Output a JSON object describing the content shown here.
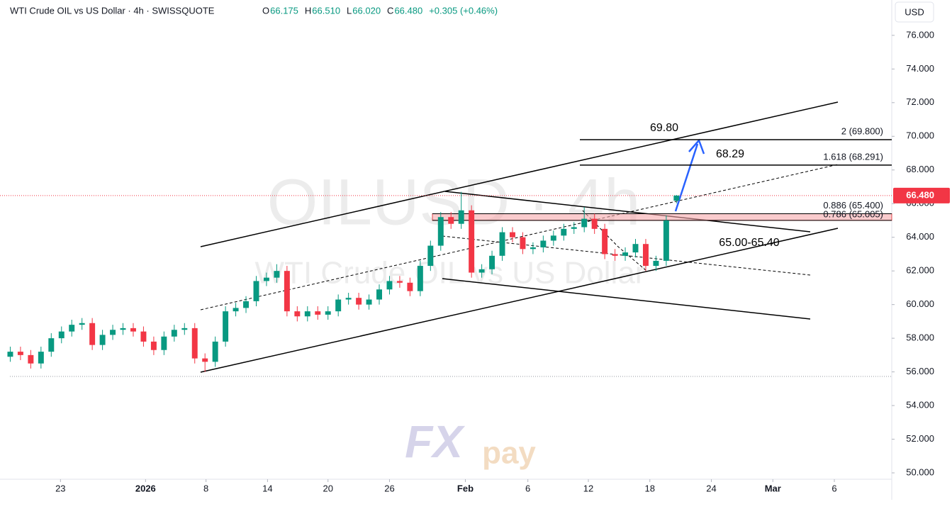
{
  "header": {
    "title": "WTI Crude OIL vs US Dollar · 4h · SWISSQUOTE",
    "ohlc": [
      {
        "label": "O",
        "value": "66.175"
      },
      {
        "label": "H",
        "value": "66.510"
      },
      {
        "label": "L",
        "value": "66.020"
      },
      {
        "label": "C",
        "value": "66.480"
      }
    ],
    "change": "+0.305 (+0.46%)",
    "currency": "USD"
  },
  "watermark": {
    "symbol": "OILUSD · 4h",
    "description": "WTI Crude OIL vs US Dollar",
    "brand_parts": [
      "FX",
      "pay"
    ]
  },
  "chart_data": {
    "type": "candlestick",
    "x": [
      0,
      1,
      2,
      3,
      4,
      5,
      6,
      7,
      8,
      9,
      10,
      11,
      12,
      13,
      14,
      15,
      16,
      17,
      18,
      19,
      20,
      21,
      22,
      23,
      24,
      25,
      26,
      27,
      28,
      29,
      30,
      31,
      32,
      33,
      34,
      35,
      36,
      37,
      38,
      39,
      40,
      41,
      42,
      43,
      44,
      45,
      46,
      47,
      48,
      49,
      50,
      51,
      52,
      53,
      54,
      55,
      56,
      57,
      58,
      59,
      60,
      61,
      62,
      63,
      64,
      65
    ],
    "open": [
      56.9,
      57.2,
      57.0,
      56.5,
      57.2,
      58.0,
      58.4,
      58.8,
      58.9,
      57.6,
      58.2,
      58.5,
      58.6,
      58.4,
      57.8,
      57.3,
      58.1,
      58.5,
      58.6,
      56.8,
      56.6,
      57.8,
      59.6,
      59.8,
      60.2,
      61.4,
      61.6,
      62.0,
      59.6,
      59.3,
      59.6,
      59.4,
      59.6,
      60.3,
      60.4,
      60.0,
      60.3,
      60.9,
      61.4,
      61.3,
      60.8,
      62.3,
      63.5,
      65.2,
      64.8,
      65.6,
      61.9,
      62.1,
      62.9,
      64.3,
      64.0,
      63.3,
      63.4,
      63.8,
      64.1,
      64.5,
      64.6,
      65.1,
      64.5,
      63.0,
      62.9,
      63.1,
      63.6,
      62.3,
      62.6,
      66.175
    ],
    "high": [
      57.5,
      57.5,
      57.3,
      57.5,
      58.3,
      58.7,
      59.1,
      59.2,
      59.2,
      58.5,
      58.8,
      58.9,
      58.9,
      58.7,
      58.1,
      58.4,
      58.8,
      58.9,
      58.9,
      57.1,
      58.1,
      59.9,
      60.1,
      60.5,
      61.7,
      61.9,
      62.4,
      62.3,
      59.9,
      59.9,
      59.9,
      59.9,
      60.6,
      60.7,
      60.7,
      60.6,
      61.2,
      61.7,
      61.7,
      61.6,
      62.6,
      63.8,
      65.5,
      65.5,
      66.7,
      65.9,
      62.4,
      63.2,
      64.6,
      64.6,
      64.3,
      63.7,
      64.1,
      64.4,
      64.8,
      64.9,
      65.8,
      65.4,
      64.8,
      63.3,
      63.4,
      63.9,
      63.9,
      62.9,
      65.3,
      66.51
    ],
    "low": [
      56.6,
      56.7,
      56.2,
      56.2,
      56.9,
      57.7,
      58.1,
      58.5,
      57.3,
      57.3,
      57.9,
      58.2,
      58.1,
      57.5,
      57.0,
      57.0,
      57.8,
      58.2,
      56.5,
      56.0,
      56.3,
      57.5,
      59.3,
      59.5,
      59.9,
      61.1,
      61.3,
      59.3,
      59.0,
      59.0,
      59.1,
      59.1,
      59.3,
      60.0,
      59.7,
      59.7,
      60.0,
      60.6,
      61.0,
      60.5,
      60.5,
      62.0,
      63.2,
      64.5,
      64.5,
      61.6,
      61.6,
      61.8,
      62.6,
      63.7,
      63.0,
      63.0,
      63.1,
      63.5,
      63.8,
      64.2,
      64.3,
      64.2,
      62.7,
      62.6,
      62.6,
      62.8,
      62.0,
      62.0,
      62.3,
      66.02
    ],
    "close": [
      57.2,
      57.0,
      56.5,
      57.2,
      58.0,
      58.4,
      58.8,
      58.9,
      57.6,
      58.2,
      58.5,
      58.6,
      58.4,
      57.8,
      57.3,
      58.1,
      58.5,
      58.6,
      56.8,
      56.6,
      57.8,
      59.6,
      59.8,
      60.2,
      61.4,
      61.6,
      62.0,
      59.6,
      59.3,
      59.6,
      59.4,
      59.6,
      60.3,
      60.4,
      60.0,
      60.3,
      60.9,
      61.4,
      61.3,
      60.8,
      62.3,
      63.5,
      65.2,
      64.8,
      65.6,
      61.9,
      62.1,
      62.9,
      64.3,
      64.0,
      63.3,
      63.4,
      63.8,
      64.1,
      64.5,
      64.6,
      65.1,
      64.5,
      63.0,
      62.9,
      63.1,
      63.6,
      62.3,
      62.6,
      65.0,
      66.48
    ],
    "up_color": "#089981",
    "down_color": "#f23645",
    "xlim": [
      -1,
      86
    ],
    "xticks": [
      {
        "value": 4.9,
        "label": "23"
      },
      {
        "value": 13.2,
        "label": "2026"
      },
      {
        "value": 19.1,
        "label": "8"
      },
      {
        "value": 25.1,
        "label": "14"
      },
      {
        "value": 31.0,
        "label": "20"
      },
      {
        "value": 37.0,
        "label": "26"
      },
      {
        "value": 44.4,
        "label": "Feb"
      },
      {
        "value": 50.5,
        "label": "6"
      },
      {
        "value": 56.4,
        "label": "12"
      },
      {
        "value": 62.4,
        "label": "18"
      },
      {
        "value": 68.4,
        "label": "24"
      },
      {
        "value": 74.4,
        "label": "Mar"
      },
      {
        "value": 80.4,
        "label": "6"
      }
    ],
    "ylim": [
      48.4,
      78.1
    ],
    "yticks": [
      {
        "value": 50,
        "label": "50.000"
      },
      {
        "value": 52,
        "label": "52.000"
      },
      {
        "value": 54,
        "label": "54.000"
      },
      {
        "value": 56,
        "label": "56.000"
      },
      {
        "value": 58,
        "label": "58.000"
      },
      {
        "value": 60,
        "label": "60.000"
      },
      {
        "value": 62,
        "label": "62.000"
      },
      {
        "value": 64,
        "label": "64.000"
      },
      {
        "value": 66,
        "label": "66.000"
      },
      {
        "value": 68,
        "label": "68.000"
      },
      {
        "value": 70,
        "label": "70.000"
      },
      {
        "value": 72,
        "label": "72.000"
      },
      {
        "value": 74,
        "label": "74.000"
      },
      {
        "value": 76,
        "label": "76.000"
      }
    ],
    "last_price": {
      "value": 66.48,
      "label": "66.480"
    },
    "fib_levels": [
      {
        "value": 69.8,
        "label": "2 (69.800)"
      },
      {
        "value": 68.291,
        "label": "1.618 (68.291)"
      },
      {
        "value": 65.4,
        "label": "0.886 (65.400)"
      },
      {
        "value": 65.005,
        "label": "0.786 (65.005)"
      }
    ],
    "annotations": [
      "69.80",
      "68.29",
      "65.00-65.40"
    ]
  }
}
